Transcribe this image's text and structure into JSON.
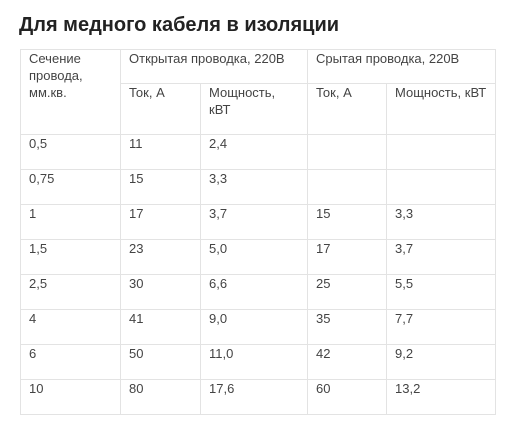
{
  "title": "Для медного кабеля в изоляции",
  "table": {
    "header_section": "Сечение провода, мм.кв.",
    "header_open": "Открытая проводка, 220В",
    "header_hidden": "Срытая проводка, 220В",
    "sub_current_open": "Ток, А",
    "sub_power_open": "Мощность, кВТ",
    "sub_current_hidden": "Ток, А",
    "sub_power_hidden": "Мощность, кВТ",
    "rows": [
      {
        "section": "0,5",
        "open_current": "11",
        "open_power": "2,4",
        "hidden_current": "",
        "hidden_power": ""
      },
      {
        "section": "0,75",
        "open_current": "15",
        "open_power": "3,3",
        "hidden_current": "",
        "hidden_power": ""
      },
      {
        "section": "1",
        "open_current": "17",
        "open_power": "3,7",
        "hidden_current": "15",
        "hidden_power": "3,3"
      },
      {
        "section": "1,5",
        "open_current": "23",
        "open_power": "5,0",
        "hidden_current": "17",
        "hidden_power": "3,7"
      },
      {
        "section": "2,5",
        "open_current": "30",
        "open_power": "6,6",
        "hidden_current": "25",
        "hidden_power": "5,5"
      },
      {
        "section": "4",
        "open_current": "41",
        "open_power": "9,0",
        "hidden_current": "35",
        "hidden_power": "7,7"
      },
      {
        "section": "6",
        "open_current": "50",
        "open_power": "11,0",
        "hidden_current": "42",
        "hidden_power": "9,2"
      },
      {
        "section": "10",
        "open_current": "80",
        "open_power": "17,6",
        "hidden_current": "60",
        "hidden_power": "13,2"
      }
    ]
  }
}
